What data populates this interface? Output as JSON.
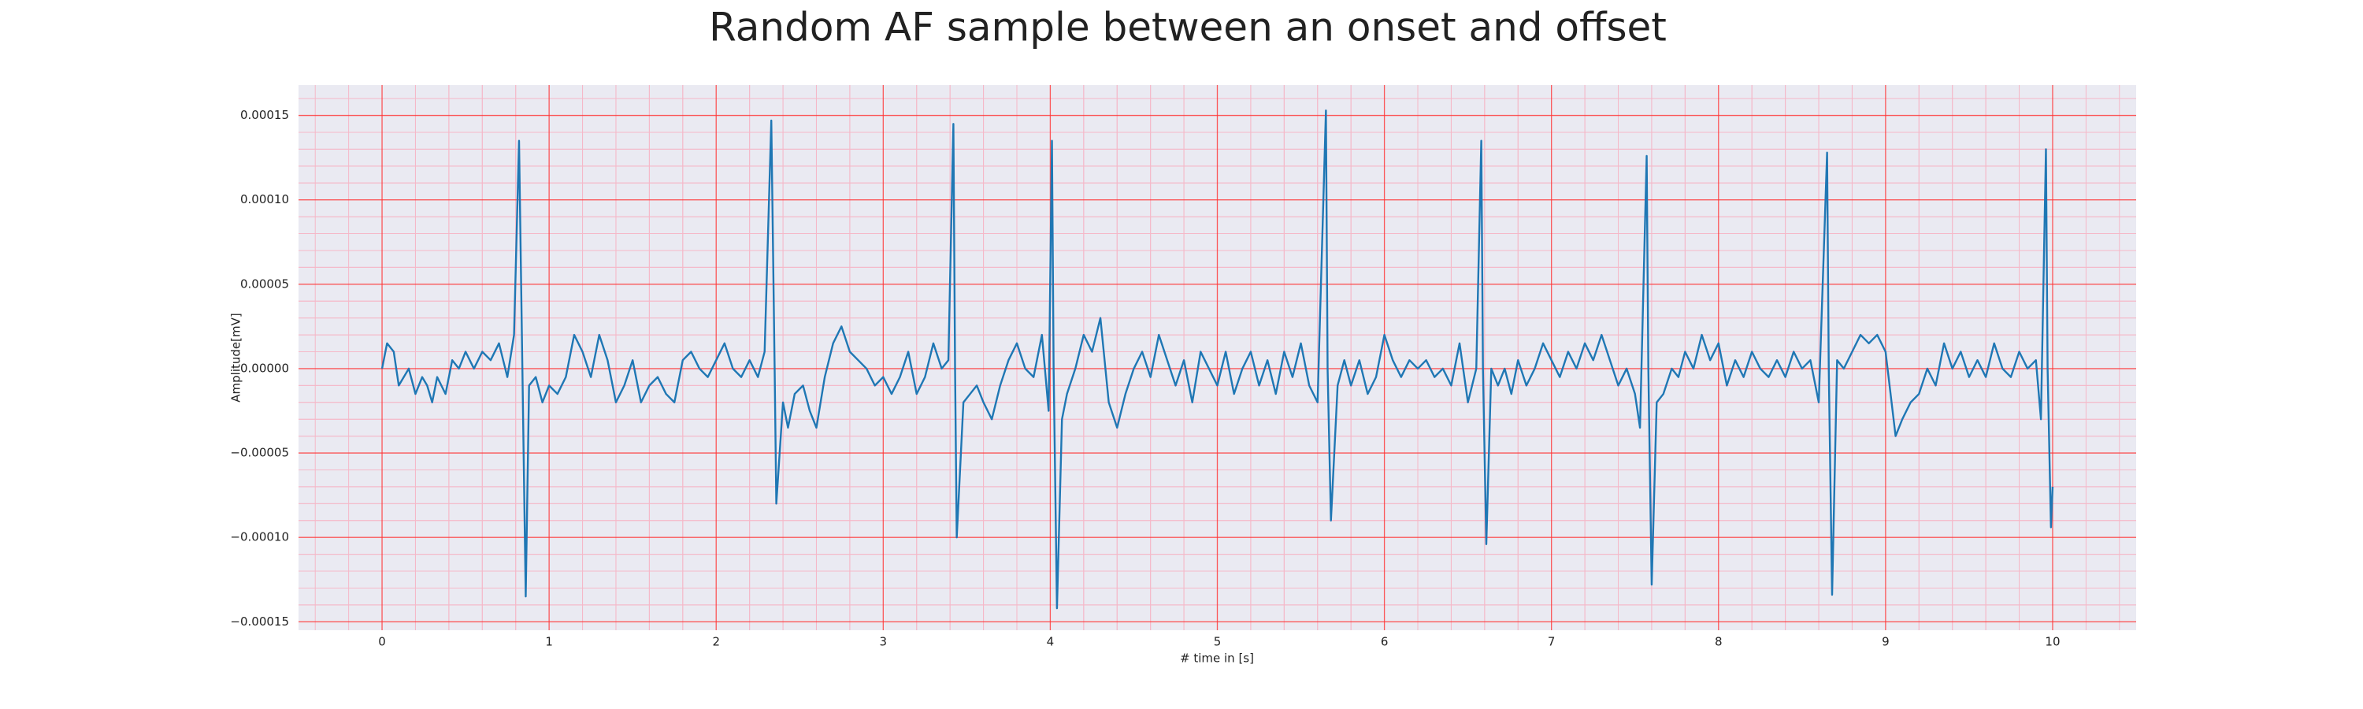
{
  "chart_data": {
    "type": "line",
    "title": "Random AF sample between an onset and offset",
    "x_label": "# time in [s]",
    "y_label": "Amplitude[mV]",
    "xlim": [
      -0.5,
      10.5
    ],
    "ylim": [
      -0.000155,
      0.000168
    ],
    "xticks": [
      0,
      1,
      2,
      3,
      4,
      5,
      6,
      7,
      8,
      9,
      10
    ],
    "yticks": [
      {
        "value": -0.00015,
        "label": "−0.00015"
      },
      {
        "value": -0.0001,
        "label": "−0.00010"
      },
      {
        "value": -5e-05,
        "label": "−0.00005"
      },
      {
        "value": 0,
        "label": "0.00000"
      },
      {
        "value": 5e-05,
        "label": "0.00005"
      },
      {
        "value": 0.0001,
        "label": "0.00010"
      },
      {
        "value": 0.00015,
        "label": "0.00015"
      }
    ],
    "grid": true,
    "minor_grid": true,
    "grid_color": "#ff3333",
    "minor_grid_color": "#f5b8c8",
    "background": "#eaeaf2",
    "series": [
      {
        "color": "#1f77b4",
        "x": [
          0,
          0.03,
          0.07,
          0.1,
          0.13,
          0.16,
          0.2,
          0.24,
          0.27,
          0.3,
          0.33,
          0.38,
          0.42,
          0.46,
          0.5,
          0.55,
          0.6,
          0.65,
          0.7,
          0.75,
          0.79,
          0.82,
          0.84,
          0.86,
          0.88,
          0.92,
          0.96,
          1.0,
          1.05,
          1.1,
          1.15,
          1.2,
          1.25,
          1.3,
          1.35,
          1.4,
          1.45,
          1.5,
          1.55,
          1.6,
          1.65,
          1.7,
          1.75,
          1.8,
          1.85,
          1.9,
          1.95,
          2.0,
          2.05,
          2.1,
          2.15,
          2.2,
          2.25,
          2.29,
          2.33,
          2.35,
          2.36,
          2.4,
          2.43,
          2.47,
          2.52,
          2.56,
          2.6,
          2.65,
          2.7,
          2.75,
          2.8,
          2.85,
          2.9,
          2.95,
          3.0,
          3.05,
          3.1,
          3.15,
          3.2,
          3.25,
          3.3,
          3.35,
          3.39,
          3.42,
          3.43,
          3.44,
          3.48,
          3.52,
          3.56,
          3.6,
          3.65,
          3.7,
          3.75,
          3.8,
          3.85,
          3.9,
          3.95,
          3.99,
          4.01,
          4.02,
          4.04,
          4.07,
          4.1,
          4.15,
          4.2,
          4.25,
          4.3,
          4.35,
          4.4,
          4.45,
          4.5,
          4.55,
          4.6,
          4.65,
          4.7,
          4.75,
          4.8,
          4.85,
          4.9,
          4.95,
          5.0,
          5.05,
          5.1,
          5.15,
          5.2,
          5.25,
          5.3,
          5.35,
          5.4,
          5.45,
          5.5,
          5.55,
          5.6,
          5.65,
          5.66,
          5.68,
          5.72,
          5.76,
          5.8,
          5.85,
          5.9,
          5.95,
          6.0,
          6.05,
          6.1,
          6.15,
          6.2,
          6.25,
          6.3,
          6.35,
          6.4,
          6.45,
          6.5,
          6.55,
          6.58,
          6.59,
          6.61,
          6.64,
          6.68,
          6.72,
          6.76,
          6.8,
          6.85,
          6.9,
          6.95,
          7.0,
          7.05,
          7.1,
          7.15,
          7.2,
          7.25,
          7.3,
          7.35,
          7.4,
          7.45,
          7.5,
          7.53,
          7.57,
          7.58,
          7.6,
          7.63,
          7.67,
          7.72,
          7.76,
          7.8,
          7.85,
          7.9,
          7.95,
          8.0,
          8.05,
          8.1,
          8.15,
          8.2,
          8.25,
          8.3,
          8.35,
          8.4,
          8.45,
          8.5,
          8.55,
          8.6,
          8.65,
          8.66,
          8.68,
          8.71,
          8.75,
          8.8,
          8.85,
          8.9,
          8.95,
          9.0,
          9.03,
          9.06,
          9.1,
          9.15,
          9.2,
          9.25,
          9.3,
          9.35,
          9.4,
          9.45,
          9.5,
          9.55,
          9.6,
          9.65,
          9.7,
          9.75,
          9.8,
          9.85,
          9.9,
          9.93,
          9.96,
          9.97,
          9.99,
          10.0
        ],
        "values": [
          0,
          1.5e-05,
          1e-05,
          -1e-05,
          -5e-06,
          0,
          -1.5e-05,
          -5e-06,
          -1e-05,
          -2e-05,
          -5e-06,
          -1.5e-05,
          5e-06,
          0,
          1e-05,
          0,
          1e-05,
          5e-06,
          1.5e-05,
          -5e-06,
          2e-05,
          0.000135,
          0,
          -0.000135,
          -1e-05,
          -5e-06,
          -2e-05,
          -1e-05,
          -1.5e-05,
          -5e-06,
          2e-05,
          1e-05,
          -5e-06,
          2e-05,
          5e-06,
          -2e-05,
          -1e-05,
          5e-06,
          -2e-05,
          -1e-05,
          -5e-06,
          -1.5e-05,
          -2e-05,
          5e-06,
          1e-05,
          0,
          -5e-06,
          5e-06,
          1.5e-05,
          0,
          -5e-06,
          5e-06,
          -5e-06,
          1e-05,
          0.000147,
          0,
          -8e-05,
          -2e-05,
          -3.5e-05,
          -1.5e-05,
          -1e-05,
          -2.5e-05,
          -3.5e-05,
          -5e-06,
          1.5e-05,
          2.5e-05,
          1e-05,
          5e-06,
          0,
          -1e-05,
          -5e-06,
          -1.5e-05,
          -5e-06,
          1e-05,
          -1.5e-05,
          -5e-06,
          1.5e-05,
          0,
          5e-06,
          0.000145,
          0,
          -0.0001,
          -2e-05,
          -1.5e-05,
          -1e-05,
          -2e-05,
          -3e-05,
          -1e-05,
          5e-06,
          1.5e-05,
          0,
          -5e-06,
          2e-05,
          -2.5e-05,
          0.000135,
          0,
          -0.000142,
          -3e-05,
          -1.5e-05,
          0,
          2e-05,
          1e-05,
          3e-05,
          -2e-05,
          -3.5e-05,
          -1.5e-05,
          0,
          1e-05,
          -5e-06,
          2e-05,
          5e-06,
          -1e-05,
          5e-06,
          -2e-05,
          1e-05,
          0,
          -1e-05,
          1e-05,
          -1.5e-05,
          0,
          1e-05,
          -1e-05,
          5e-06,
          -1.5e-05,
          1e-05,
          -5e-06,
          1.5e-05,
          -1e-05,
          -2e-05,
          0.000153,
          0,
          -9e-05,
          -1e-05,
          5e-06,
          -1e-05,
          5e-06,
          -1.5e-05,
          -5e-06,
          2e-05,
          5e-06,
          -5e-06,
          5e-06,
          0,
          5e-06,
          -5e-06,
          0,
          -1e-05,
          1.5e-05,
          -2e-05,
          0,
          0.000135,
          0,
          -0.000104,
          0,
          -1e-05,
          0,
          -1.5e-05,
          5e-06,
          -1e-05,
          0,
          1.5e-05,
          5e-06,
          -5e-06,
          1e-05,
          0,
          1.5e-05,
          5e-06,
          2e-05,
          5e-06,
          -1e-05,
          0,
          -1.5e-05,
          -3.5e-05,
          0.000126,
          0,
          -0.000128,
          -2e-05,
          -1.5e-05,
          0,
          -5e-06,
          1e-05,
          0,
          2e-05,
          5e-06,
          1.5e-05,
          -1e-05,
          5e-06,
          -5e-06,
          1e-05,
          0,
          -5e-06,
          5e-06,
          -5e-06,
          1e-05,
          0,
          5e-06,
          -2e-05,
          0.000128,
          0,
          -0.000134,
          5e-06,
          0,
          1e-05,
          2e-05,
          1.5e-05,
          2e-05,
          1e-05,
          -1.5e-05,
          -4e-05,
          -3e-05,
          -2e-05,
          -1.5e-05,
          0,
          -1e-05,
          1.5e-05,
          0,
          1e-05,
          -5e-06,
          5e-06,
          -5e-06,
          1.5e-05,
          0,
          -5e-06,
          1e-05,
          0,
          5e-06,
          -3e-05,
          0.00013,
          0,
          -9.4e-05,
          -7e-05
        ]
      }
    ]
  }
}
